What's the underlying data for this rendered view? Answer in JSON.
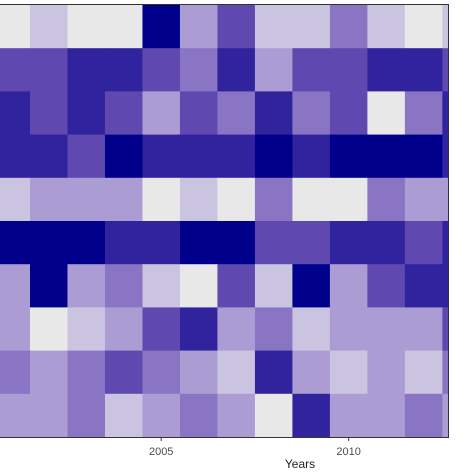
{
  "chart_data": {
    "type": "heatmap",
    "xlabel": "Years",
    "x": [
      2001,
      2002,
      2003,
      2004,
      2005,
      2006,
      2007,
      2008,
      2009,
      2010,
      2011,
      2012,
      2013
    ],
    "xlim": [
      2000.7,
      2012.65
    ],
    "xticks": [
      2005,
      2010
    ],
    "zlim": [
      0,
      6
    ],
    "color_scale": [
      "#e8e8e8",
      "#bcb2dc",
      "#8a74c4",
      "#4a34a8",
      "#00008b"
    ],
    "values": [
      [
        0,
        1,
        0,
        0,
        6,
        2,
        4,
        1,
        1,
        3,
        1,
        0,
        1
      ],
      [
        4,
        4,
        5,
        5,
        4,
        3,
        5,
        2,
        4,
        4,
        5,
        5,
        4
      ],
      [
        5,
        4,
        5,
        4,
        2,
        4,
        3,
        5,
        3,
        4,
        0,
        3,
        5
      ],
      [
        5,
        5,
        4,
        6,
        5,
        5,
        5,
        6,
        5,
        6,
        6,
        6,
        5
      ],
      [
        1,
        2,
        2,
        2,
        0,
        1,
        0,
        3,
        0,
        0,
        3,
        2,
        2
      ],
      [
        6,
        6,
        6,
        5,
        5,
        6,
        6,
        4,
        4,
        5,
        5,
        4,
        5
      ],
      [
        2,
        6,
        2,
        3,
        1,
        0,
        4,
        1,
        6,
        2,
        4,
        5,
        5
      ],
      [
        2,
        0,
        1,
        2,
        4,
        5,
        2,
        3,
        1,
        2,
        2,
        2,
        4
      ],
      [
        3,
        2,
        3,
        4,
        3,
        2,
        1,
        5,
        2,
        1,
        2,
        1,
        3
      ],
      [
        2,
        2,
        3,
        1,
        2,
        3,
        2,
        0,
        5,
        2,
        2,
        3,
        2
      ]
    ]
  }
}
